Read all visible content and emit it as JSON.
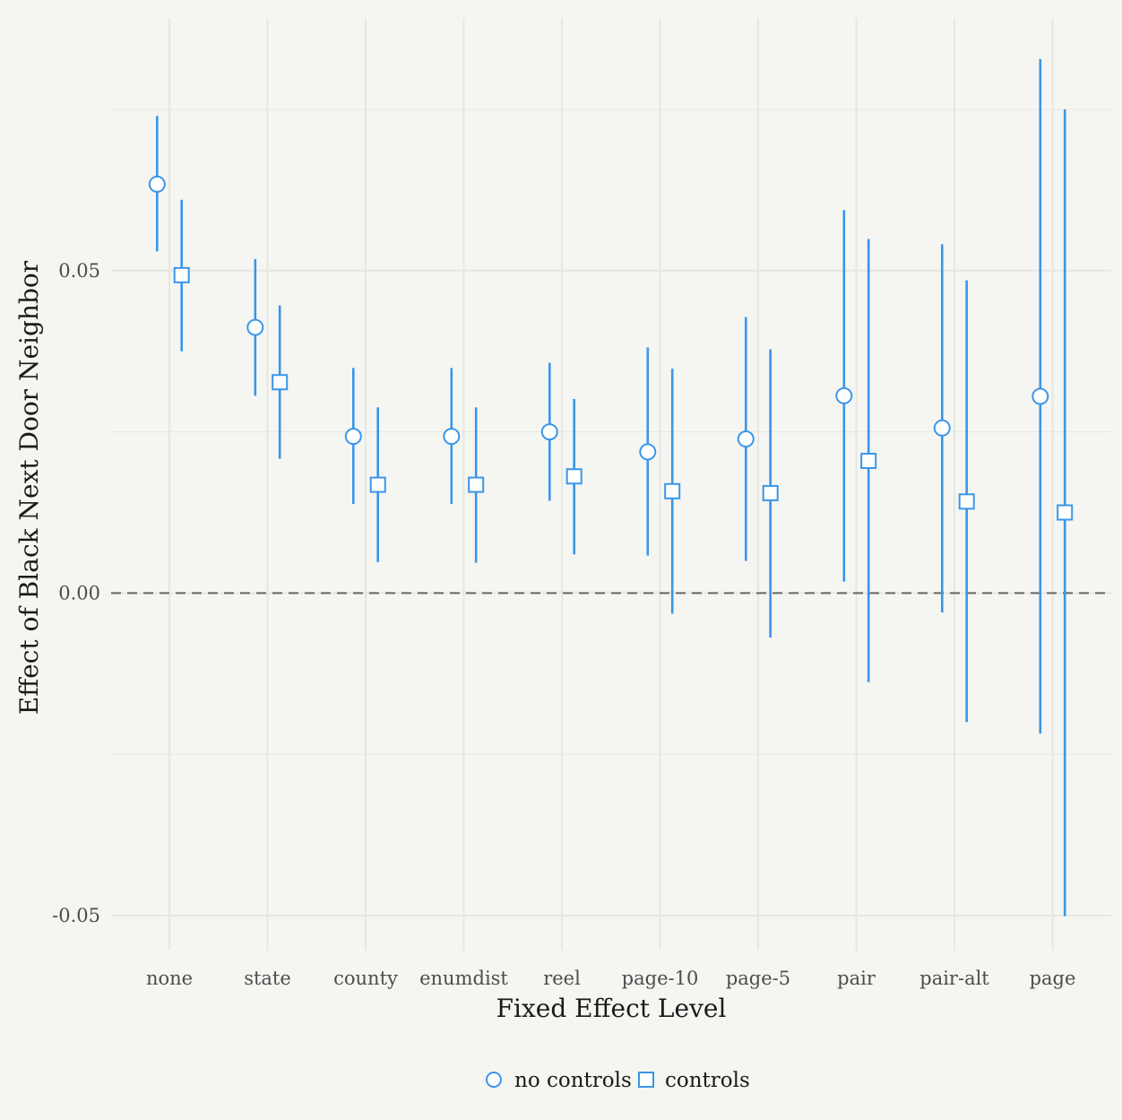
{
  "chart_data": {
    "type": "scatter",
    "subtype": "point-range",
    "title": "",
    "xlabel": "Fixed Effect Level",
    "ylabel": "Effect of Black Next Door Neighbor",
    "categories": [
      "none",
      "state",
      "county",
      "enumdist",
      "reel",
      "page-10",
      "page-5",
      "pair",
      "pair-alt",
      "page"
    ],
    "ylim": [
      -0.055,
      0.09
    ],
    "yticks": [
      -0.05,
      0.0,
      0.05
    ],
    "ytick_labels": [
      "-0.05",
      "0.00",
      "0.05"
    ],
    "grid": true,
    "reference_line": {
      "y": 0.0,
      "style": "dashed"
    },
    "legend_position": "bottom",
    "colors": {
      "series": "#3a96e8",
      "background": "#f5f5f2",
      "grid": "#e6e6e3",
      "ref_line": "#666666"
    },
    "series": [
      {
        "name": "no controls",
        "marker": "circle",
        "values": [
          0.0634,
          0.0412,
          0.0243,
          0.0243,
          0.025,
          0.0219,
          0.0239,
          0.0306,
          0.0256,
          0.0305
        ],
        "lower": [
          0.053,
          0.0306,
          0.0138,
          0.0138,
          0.0143,
          0.0058,
          0.005,
          0.0018,
          -0.003,
          -0.0218
        ],
        "upper": [
          0.074,
          0.0518,
          0.0349,
          0.0349,
          0.0357,
          0.0381,
          0.0428,
          0.0594,
          0.0541,
          0.0828
        ]
      },
      {
        "name": "controls",
        "marker": "square",
        "values": [
          0.0493,
          0.0327,
          0.0168,
          0.0168,
          0.0181,
          0.0158,
          0.0155,
          0.0205,
          0.0142,
          0.0125
        ],
        "lower": [
          0.0375,
          0.0208,
          0.0048,
          0.0047,
          0.006,
          -0.0032,
          -0.0069,
          -0.0138,
          -0.02,
          -0.0501
        ],
        "upper": [
          0.061,
          0.0446,
          0.0288,
          0.0288,
          0.0301,
          0.0348,
          0.0378,
          0.0549,
          0.0485,
          0.075
        ]
      }
    ]
  }
}
